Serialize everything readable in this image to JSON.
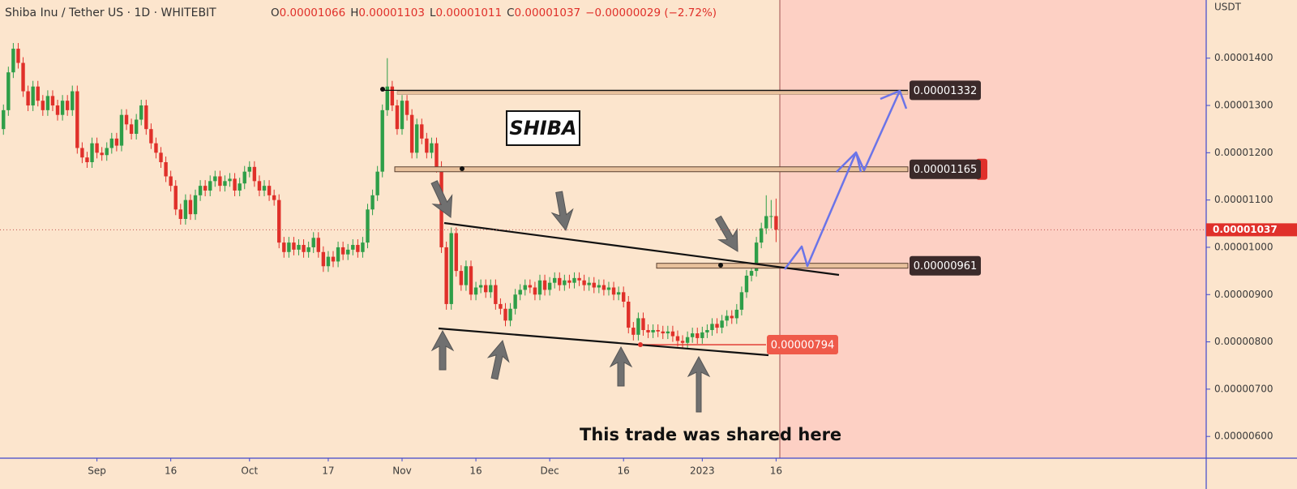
{
  "chart_data": {
    "type": "candlestick",
    "title": "Shiba Inu / Tether US · 1D · WHITEBIT",
    "legend": [
      "O",
      "0.00001066",
      "H",
      "0.00001103",
      "L",
      "0.00001011",
      "C",
      "0.00001037",
      "−0.00000029 (−2.72%)"
    ],
    "y_unit": "USDT",
    "up_color": "#2e9e48",
    "down_color": "#e0302a",
    "xlim": [
      -0.7,
      244.4
    ],
    "xticks": [
      {
        "value": 19,
        "label": "Sep"
      },
      {
        "value": 34,
        "label": "16"
      },
      {
        "value": 50,
        "label": "Oct"
      },
      {
        "value": 66,
        "label": "17"
      },
      {
        "value": 81,
        "label": "Nov"
      },
      {
        "value": 96,
        "label": "16"
      },
      {
        "value": 111,
        "label": "Dec"
      },
      {
        "value": 126,
        "label": "16"
      },
      {
        "value": 142,
        "label": "2023"
      },
      {
        "value": 157,
        "label": "16"
      }
    ],
    "ylim": [
      5.54e-06,
      1.523e-05
    ],
    "yticks": [
      {
        "value": 6e-06,
        "label": "0.00000600"
      },
      {
        "value": 7e-06,
        "label": "0.00000700"
      },
      {
        "value": 8e-06,
        "label": "0.00000800"
      },
      {
        "value": 9e-06,
        "label": "0.00000900"
      },
      {
        "value": 1e-05,
        "label": "0.00001000"
      },
      {
        "value": 1.1e-05,
        "label": "0.00001100"
      },
      {
        "value": 1.2e-05,
        "label": "0.00001200"
      },
      {
        "value": 1.3e-05,
        "label": "0.00001300"
      },
      {
        "value": 1.4e-05,
        "label": "0.00001400"
      }
    ],
    "last_price": 1.037e-05,
    "levels": [
      1.332e-05,
      1.165e-05,
      9.61e-06,
      7.94e-06
    ],
    "annotations": [
      "SHIBA",
      "This trade was shared here"
    ],
    "ohlc": [
      [
        1.25e-05,
        1.302e-05,
        1.238e-05,
        1.29e-05
      ],
      [
        1.29e-05,
        1.382e-05,
        1.278e-05,
        1.37e-05
      ],
      [
        1.37e-05,
        1.432e-05,
        1.358e-05,
        1.42e-05
      ],
      [
        1.42e-05,
        1.432e-05,
        1.378e-05,
        1.39e-05
      ],
      [
        1.39e-05,
        1.402e-05,
        1.318e-05,
        1.33e-05
      ],
      [
        1.33e-05,
        1.342e-05,
        1.288e-05,
        1.3e-05
      ],
      [
        1.3e-05,
        1.352e-05,
        1.288e-05,
        1.34e-05
      ],
      [
        1.34e-05,
        1.352e-05,
        1.298e-05,
        1.31e-05
      ],
      [
        1.31e-05,
        1.322e-05,
        1.278e-05,
        1.29e-05
      ],
      [
        1.29e-05,
        1.332e-05,
        1.278e-05,
        1.32e-05
      ],
      [
        1.32e-05,
        1.332e-05,
        1.288e-05,
        1.3e-05
      ],
      [
        1.3e-05,
        1.312e-05,
        1.268e-05,
        1.28e-05
      ],
      [
        1.28e-05,
        1.322e-05,
        1.268e-05,
        1.31e-05
      ],
      [
        1.31e-05,
        1.322e-05,
        1.278e-05,
        1.29e-05
      ],
      [
        1.29e-05,
        1.342e-05,
        1.278e-05,
        1.33e-05
      ],
      [
        1.33e-05,
        1.342e-05,
        1.198e-05,
        1.21e-05
      ],
      [
        1.21e-05,
        1.222e-05,
        1.178e-05,
        1.19e-05
      ],
      [
        1.19e-05,
        1.202e-05,
        1.168e-05,
        1.18e-05
      ],
      [
        1.18e-05,
        1.232e-05,
        1.168e-05,
        1.22e-05
      ],
      [
        1.22e-05,
        1.232e-05,
        1.188e-05,
        1.2e-05
      ],
      [
        1.2e-05,
        1.212e-05,
        1.183e-05,
        1.195e-05
      ],
      [
        1.195e-05,
        1.222e-05,
        1.183e-05,
        1.21e-05
      ],
      [
        1.21e-05,
        1.242e-05,
        1.198e-05,
        1.23e-05
      ],
      [
        1.23e-05,
        1.242e-05,
        1.203e-05,
        1.215e-05
      ],
      [
        1.215e-05,
        1.292e-05,
        1.203e-05,
        1.28e-05
      ],
      [
        1.28e-05,
        1.292e-05,
        1.248e-05,
        1.26e-05
      ],
      [
        1.26e-05,
        1.272e-05,
        1.228e-05,
        1.24e-05
      ],
      [
        1.24e-05,
        1.282e-05,
        1.228e-05,
        1.27e-05
      ],
      [
        1.27e-05,
        1.312e-05,
        1.258e-05,
        1.3e-05
      ],
      [
        1.3e-05,
        1.312e-05,
        1.238e-05,
        1.25e-05
      ],
      [
        1.25e-05,
        1.262e-05,
        1.208e-05,
        1.22e-05
      ],
      [
        1.22e-05,
        1.232e-05,
        1.188e-05,
        1.2e-05
      ],
      [
        1.2e-05,
        1.212e-05,
        1.168e-05,
        1.18e-05
      ],
      [
        1.18e-05,
        1.192e-05,
        1.138e-05,
        1.15e-05
      ],
      [
        1.15e-05,
        1.162e-05,
        1.118e-05,
        1.13e-05
      ],
      [
        1.13e-05,
        1.142e-05,
        1.068e-05,
        1.08e-05
      ],
      [
        1.08e-05,
        1.092e-05,
        1.048e-05,
        1.06e-05
      ],
      [
        1.06e-05,
        1.112e-05,
        1.048e-05,
        1.1e-05
      ],
      [
        1.1e-05,
        1.112e-05,
        1.058e-05,
        1.07e-05
      ],
      [
        1.07e-05,
        1.122e-05,
        1.058e-05,
        1.11e-05
      ],
      [
        1.11e-05,
        1.142e-05,
        1.098e-05,
        1.13e-05
      ],
      [
        1.13e-05,
        1.142e-05,
        1.108e-05,
        1.12e-05
      ],
      [
        1.12e-05,
        1.152e-05,
        1.108e-05,
        1.14e-05
      ],
      [
        1.14e-05,
        1.162e-05,
        1.128e-05,
        1.15e-05
      ],
      [
        1.15e-05,
        1.162e-05,
        1.118e-05,
        1.13e-05
      ],
      [
        1.13e-05,
        1.152e-05,
        1.118e-05,
        1.14e-05
      ],
      [
        1.14e-05,
        1.157e-05,
        1.128e-05,
        1.145e-05
      ],
      [
        1.145e-05,
        1.157e-05,
        1.108e-05,
        1.12e-05
      ],
      [
        1.12e-05,
        1.147e-05,
        1.108e-05,
        1.135e-05
      ],
      [
        1.135e-05,
        1.172e-05,
        1.123e-05,
        1.16e-05
      ],
      [
        1.16e-05,
        1.182e-05,
        1.148e-05,
        1.17e-05
      ],
      [
        1.17e-05,
        1.182e-05,
        1.128e-05,
        1.14e-05
      ],
      [
        1.14e-05,
        1.152e-05,
        1.108e-05,
        1.12e-05
      ],
      [
        1.12e-05,
        1.142e-05,
        1.108e-05,
        1.13e-05
      ],
      [
        1.13e-05,
        1.142e-05,
        1.098e-05,
        1.11e-05
      ],
      [
        1.11e-05,
        1.122e-05,
        1.088e-05,
        1.1e-05
      ],
      [
        1.1e-05,
        1.112e-05,
        9.98e-06,
        1.01e-05
      ],
      [
        1.01e-05,
        1.022e-05,
        9.78e-06,
        9.9e-06
      ],
      [
        9.9e-06,
        1.022e-05,
        9.78e-06,
        1.01e-05
      ],
      [
        1.01e-05,
        1.022e-05,
        9.83e-06,
        9.95e-06
      ],
      [
        9.95e-06,
        1.017e-05,
        9.83e-06,
        1.005e-05
      ],
      [
        1.005e-05,
        1.017e-05,
        9.78e-06,
        9.9e-06
      ],
      [
        9.9e-06,
        1.012e-05,
        9.78e-06,
        1e-05
      ],
      [
        1e-05,
        1.032e-05,
        9.88e-06,
        1.02e-05
      ],
      [
        1.02e-05,
        1.032e-05,
        9.78e-06,
        9.9e-06
      ],
      [
        9.9e-06,
        1.002e-05,
        9.48e-06,
        9.6e-06
      ],
      [
        9.6e-06,
        9.92e-06,
        9.48e-06,
        9.8e-06
      ],
      [
        9.8e-06,
        9.92e-06,
        9.58e-06,
        9.7e-06
      ],
      [
        9.7e-06,
        1.012e-05,
        9.58e-06,
        1e-05
      ],
      [
        1e-05,
        1.012e-05,
        9.73e-06,
        9.85e-06
      ],
      [
        9.85e-06,
        1.007e-05,
        9.73e-06,
        9.95e-06
      ],
      [
        9.95e-06,
        1.017e-05,
        9.83e-06,
        1.005e-05
      ],
      [
        1.005e-05,
        1.017e-05,
        9.78e-06,
        9.9e-06
      ],
      [
        9.9e-06,
        1.022e-05,
        9.78e-06,
        1.01e-05
      ],
      [
        1.01e-05,
        1.092e-05,
        9.98e-06,
        1.08e-05
      ],
      [
        1.08e-05,
        1.122e-05,
        1.068e-05,
        1.11e-05
      ],
      [
        1.11e-05,
        1.172e-05,
        1.098e-05,
        1.16e-05
      ],
      [
        1.16e-05,
        1.302e-05,
        1.148e-05,
        1.29e-05
      ],
      [
        1.29e-05,
        1.4e-05,
        1.278e-05,
        1.34e-05
      ],
      [
        1.34e-05,
        1.352e-05,
        1.288e-05,
        1.3e-05
      ],
      [
        1.3e-05,
        1.312e-05,
        1.238e-05,
        1.25e-05
      ],
      [
        1.25e-05,
        1.322e-05,
        1.238e-05,
        1.31e-05
      ],
      [
        1.31e-05,
        1.322e-05,
        1.268e-05,
        1.28e-05
      ],
      [
        1.28e-05,
        1.292e-05,
        1.188e-05,
        1.2e-05
      ],
      [
        1.2e-05,
        1.272e-05,
        1.188e-05,
        1.26e-05
      ],
      [
        1.26e-05,
        1.272e-05,
        1.218e-05,
        1.23e-05
      ],
      [
        1.23e-05,
        1.242e-05,
        1.188e-05,
        1.2e-05
      ],
      [
        1.2e-05,
        1.232e-05,
        1.188e-05,
        1.22e-05
      ],
      [
        1.22e-05,
        1.232e-05,
        1.158e-05,
        1.17e-05
      ],
      [
        1.17e-05,
        1.182e-05,
        9.88e-06,
        1e-05
      ],
      [
        1e-05,
        1.012e-05,
        8.68e-06,
        8.8e-06
      ],
      [
        8.8e-06,
        1.042e-05,
        8.68e-06,
        1.03e-05
      ],
      [
        1.03e-05,
        1.042e-05,
        9.38e-06,
        9.5e-06
      ],
      [
        9.5e-06,
        9.62e-06,
        9.08e-06,
        9.2e-06
      ],
      [
        9.2e-06,
        9.72e-06,
        9.08e-06,
        9.6e-06
      ],
      [
        9.6e-06,
        9.72e-06,
        8.88e-06,
        9e-06
      ],
      [
        9e-06,
        9.27e-06,
        8.88e-06,
        9.15e-06
      ],
      [
        9.15e-06,
        9.32e-06,
        9.03e-06,
        9.2e-06
      ],
      [
        9.2e-06,
        9.32e-06,
        8.93e-06,
        9.05e-06
      ],
      [
        9.05e-06,
        9.32e-06,
        8.93e-06,
        9.2e-06
      ],
      [
        9.2e-06,
        9.32e-06,
        8.68e-06,
        8.8e-06
      ],
      [
        8.8e-06,
        8.92e-06,
        8.58e-06,
        8.7e-06
      ],
      [
        8.7e-06,
        8.82e-06,
        8.33e-06,
        8.45e-06
      ],
      [
        8.45e-06,
        8.82e-06,
        8.33e-06,
        8.7e-06
      ],
      [
        8.7e-06,
        9.12e-06,
        8.58e-06,
        9e-06
      ],
      [
        9e-06,
        9.22e-06,
        8.88e-06,
        9.1e-06
      ],
      [
        9.1e-06,
        9.32e-06,
        8.98e-06,
        9.2e-06
      ],
      [
        9.2e-06,
        9.32e-06,
        9.03e-06,
        9.15e-06
      ],
      [
        9.15e-06,
        9.27e-06,
        8.88e-06,
        9e-06
      ],
      [
        9e-06,
        9.42e-06,
        8.88e-06,
        9.3e-06
      ],
      [
        9.3e-06,
        9.42e-06,
        8.98e-06,
        9.1e-06
      ],
      [
        9.1e-06,
        9.37e-06,
        8.98e-06,
        9.25e-06
      ],
      [
        9.25e-06,
        9.47e-06,
        9.13e-06,
        9.35e-06
      ],
      [
        9.35e-06,
        9.47e-06,
        9.08e-06,
        9.2e-06
      ],
      [
        9.2e-06,
        9.42e-06,
        9.08e-06,
        9.3e-06
      ],
      [
        9.3e-06,
        9.42e-06,
        9.13e-06,
        9.25e-06
      ],
      [
        9.25e-06,
        9.47e-06,
        9.13e-06,
        9.35e-06
      ],
      [
        9.35e-06,
        9.47e-06,
        9.18e-06,
        9.3e-06
      ],
      [
        9.3e-06,
        9.42e-06,
        9.08e-06,
        9.2e-06
      ],
      [
        9.2e-06,
        9.37e-06,
        9.08e-06,
        9.25e-06
      ],
      [
        9.25e-06,
        9.37e-06,
        9.03e-06,
        9.15e-06
      ],
      [
        9.15e-06,
        9.32e-06,
        9.03e-06,
        9.2e-06
      ],
      [
        9.2e-06,
        9.32e-06,
        8.98e-06,
        9.1e-06
      ],
      [
        9.1e-06,
        9.27e-06,
        8.98e-06,
        9.15e-06
      ],
      [
        9.15e-06,
        9.27e-06,
        8.88e-06,
        9e-06
      ],
      [
        9e-06,
        9.17e-06,
        8.88e-06,
        9.05e-06
      ],
      [
        9.05e-06,
        9.17e-06,
        8.73e-06,
        8.85e-06
      ],
      [
        8.85e-06,
        8.97e-06,
        8.18e-06,
        8.3e-06
      ],
      [
        8.3e-06,
        8.42e-06,
        8.03e-06,
        8.15e-06
      ],
      [
        8.15e-06,
        8.62e-06,
        8.03e-06,
        8.5e-06
      ],
      [
        8.5e-06,
        8.62e-06,
        8.13e-06,
        8.25e-06
      ],
      [
        8.25e-06,
        8.37e-06,
        8.08e-06,
        8.2e-06
      ],
      [
        8.2e-06,
        8.37e-06,
        8.08e-06,
        8.25e-06
      ],
      [
        8.25e-06,
        8.37e-06,
        8.1e-06,
        8.22e-06
      ],
      [
        8.22e-06,
        8.34e-06,
        8.06e-06,
        8.18e-06
      ],
      [
        8.18e-06,
        8.34e-06,
        8.06e-06,
        8.22e-06
      ],
      [
        8.22e-06,
        8.34e-06,
        8e-06,
        8.12e-06
      ],
      [
        8.12e-06,
        8.24e-06,
        7.9e-06,
        8.02e-06
      ],
      [
        8.02e-06,
        8.14e-06,
        7.86e-06,
        7.98e-06
      ],
      [
        7.98e-06,
        8.22e-06,
        7.86e-06,
        8.1e-06
      ],
      [
        8.1e-06,
        8.3e-06,
        7.98e-06,
        8.18e-06
      ],
      [
        8.18e-06,
        8.3e-06,
        7.96e-06,
        8.08e-06
      ],
      [
        8.08e-06,
        8.32e-06,
        7.96e-06,
        8.2e-06
      ],
      [
        8.2e-06,
        8.37e-06,
        8.08e-06,
        8.25e-06
      ],
      [
        8.25e-06,
        8.5e-06,
        8.13e-06,
        8.38e-06
      ],
      [
        8.38e-06,
        8.5e-06,
        8.18e-06,
        8.3e-06
      ],
      [
        8.3e-06,
        8.57e-06,
        8.18e-06,
        8.45e-06
      ],
      [
        8.45e-06,
        8.67e-06,
        8.33e-06,
        8.55e-06
      ],
      [
        8.55e-06,
        8.67e-06,
        8.38e-06,
        8.5e-06
      ],
      [
        8.5e-06,
        8.8e-06,
        8.38e-06,
        8.68e-06
      ],
      [
        8.68e-06,
        9.17e-06,
        8.56e-06,
        9.05e-06
      ],
      [
        9.05e-06,
        9.52e-06,
        8.93e-06,
        9.4e-06
      ],
      [
        9.4e-06,
        9.62e-06,
        9.28e-06,
        9.5e-06
      ],
      [
        9.5e-06,
        1.022e-05,
        9.38e-06,
        1.01e-05
      ],
      [
        1.01e-05,
        1.052e-05,
        9.98e-06,
        1.04e-05
      ],
      [
        1.04e-05,
        1.11e-05,
        1.028e-05,
        1.066e-05
      ],
      [
        1.066e-05,
        1.1e-05,
        1.04e-05,
        1.066e-05
      ],
      [
        1.066e-05,
        1.103e-05,
        1.011e-05,
        1.037e-05
      ]
    ]
  }
}
